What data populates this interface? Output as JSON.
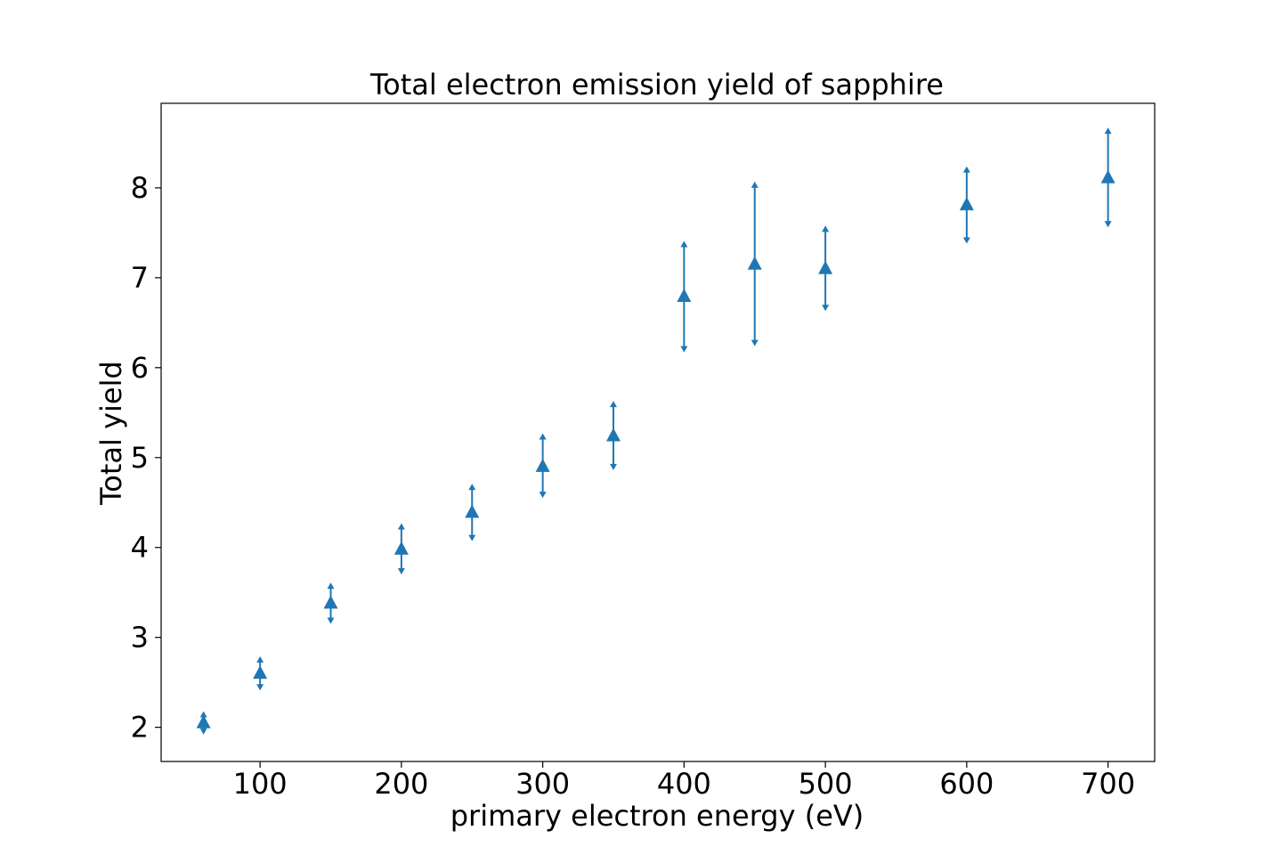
{
  "chart_data": {
    "type": "scatter",
    "title": "Total electron emission yield of sapphire",
    "xlabel": "primary electron energy (eV)",
    "ylabel": "Total yield",
    "xlim": [
      30,
      733
    ],
    "ylim": [
      1.62,
      8.94
    ],
    "x_ticks": [
      100,
      200,
      300,
      400,
      500,
      600,
      700
    ],
    "y_ticks": [
      2,
      3,
      4,
      5,
      6,
      7,
      8
    ],
    "grid": false,
    "marker": "triangle-up",
    "color": "#1f77b4",
    "series": [
      {
        "x": [
          60,
          100,
          150,
          200,
          250,
          300,
          350,
          400,
          450,
          500,
          600,
          700
        ],
        "y": [
          2.05,
          2.6,
          3.38,
          3.98,
          4.39,
          4.9,
          5.24,
          6.79,
          7.15,
          7.1,
          7.81,
          8.11
        ],
        "y_upper": [
          2.16,
          2.77,
          3.59,
          4.25,
          4.69,
          5.25,
          5.61,
          7.39,
          8.05,
          7.56,
          8.22,
          8.65
        ],
        "y_lower": [
          1.94,
          2.43,
          3.17,
          3.72,
          4.09,
          4.57,
          4.88,
          6.19,
          6.26,
          6.65,
          7.4,
          7.58
        ]
      }
    ]
  }
}
